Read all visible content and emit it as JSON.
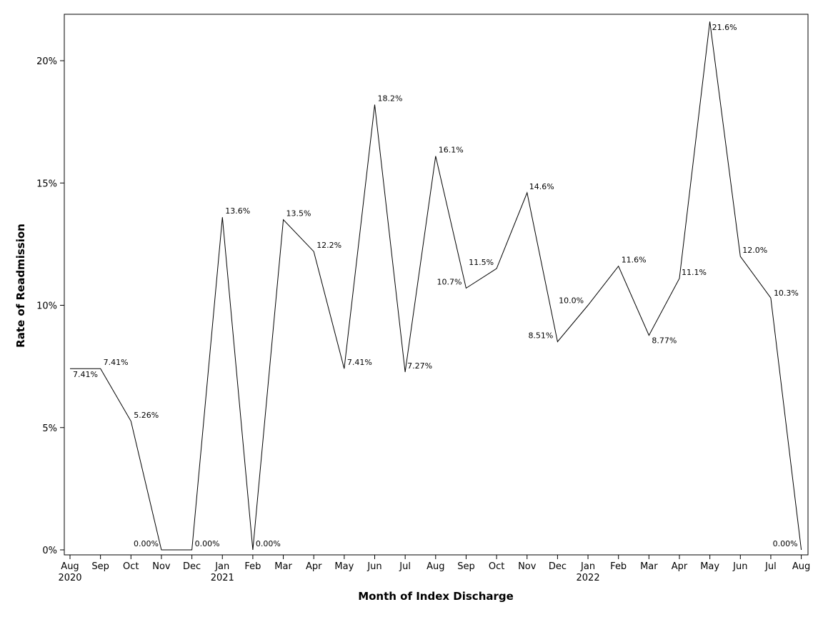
{
  "chart_data": {
    "type": "line",
    "xlabel": "Month of Index Discharge",
    "ylabel": "Rate of Readmission",
    "ylim": [
      0,
      22
    ],
    "yticks": [
      0,
      5,
      10,
      15,
      20
    ],
    "ytick_labels": [
      "0%",
      "5%",
      "10%",
      "15%",
      "20%"
    ],
    "grid": false,
    "line_color": "#000000",
    "x": [
      "Aug 2020",
      "Sep 2020",
      "Oct 2020",
      "Nov 2020",
      "Dec 2020",
      "Jan 2021",
      "Feb 2021",
      "Mar 2021",
      "Apr 2021",
      "May 2021",
      "Jun 2021",
      "Jul 2021",
      "Aug 2021",
      "Sep 2021",
      "Oct 2021",
      "Nov 2021",
      "Dec 2021",
      "Jan 2022",
      "Feb 2022",
      "Mar 2022",
      "Apr 2022",
      "May 2022",
      "Jun 2022",
      "Jul 2022",
      "Aug 2022"
    ],
    "month_labels": [
      "Aug",
      "Sep",
      "Oct",
      "Nov",
      "Dec",
      "Jan",
      "Feb",
      "Mar",
      "Apr",
      "May",
      "Jun",
      "Jul",
      "Aug",
      "Sep",
      "Oct",
      "Nov",
      "Dec",
      "Jan",
      "Feb",
      "Mar",
      "Apr",
      "May",
      "Jun",
      "Jul",
      "Aug"
    ],
    "year_labels": [
      "2020",
      "",
      "",
      "",
      "",
      "2021",
      "",
      "",
      "",
      "",
      "",
      "",
      "",
      "",
      "",
      "",
      "",
      "2022",
      "",
      "",
      "",
      "",
      "",
      "",
      ""
    ],
    "values": [
      7.41,
      7.41,
      5.26,
      0.0,
      0.0,
      13.6,
      0.0,
      13.5,
      12.2,
      7.41,
      18.2,
      7.27,
      16.1,
      10.7,
      11.5,
      14.6,
      8.51,
      10.0,
      11.6,
      8.77,
      11.1,
      21.6,
      12.0,
      10.3,
      0.0
    ],
    "data_labels": [
      "7.41%",
      "7.41%",
      "5.26%",
      "0.00%",
      "0.00%",
      "13.6%",
      "0.00%",
      "13.5%",
      "12.2%",
      "7.41%",
      "18.2%",
      "7.27%",
      "16.1%",
      "10.7%",
      "11.5%",
      "14.6%",
      "8.51%",
      "10.0%",
      "11.6%",
      "8.77%",
      "11.1%",
      "21.6%",
      "12.0%",
      "10.3%",
      "0.00%"
    ]
  }
}
